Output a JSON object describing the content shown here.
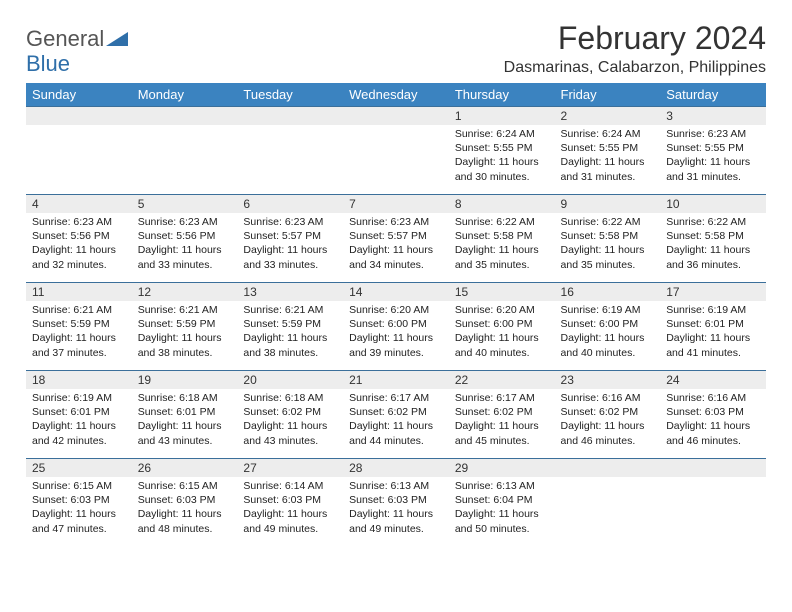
{
  "brand": {
    "part1": "General",
    "part2": "Blue"
  },
  "title": "February 2024",
  "subtitle": "Dasmarinas, Calabarzon, Philippines",
  "colors": {
    "header_bg": "#3b83c0",
    "header_text": "#ffffff",
    "daynum_bg": "#ededed",
    "cell_border": "#3b6f9a",
    "brand_gray": "#555555",
    "brand_blue": "#2f6fa9"
  },
  "day_headers": [
    "Sunday",
    "Monday",
    "Tuesday",
    "Wednesday",
    "Thursday",
    "Friday",
    "Saturday"
  ],
  "weeks": [
    [
      {
        "empty": true
      },
      {
        "empty": true
      },
      {
        "empty": true
      },
      {
        "empty": true
      },
      {
        "n": "1",
        "sr": "6:24 AM",
        "ss": "5:55 PM",
        "dh": "11",
        "dm": "30"
      },
      {
        "n": "2",
        "sr": "6:24 AM",
        "ss": "5:55 PM",
        "dh": "11",
        "dm": "31"
      },
      {
        "n": "3",
        "sr": "6:23 AM",
        "ss": "5:55 PM",
        "dh": "11",
        "dm": "31"
      }
    ],
    [
      {
        "n": "4",
        "sr": "6:23 AM",
        "ss": "5:56 PM",
        "dh": "11",
        "dm": "32"
      },
      {
        "n": "5",
        "sr": "6:23 AM",
        "ss": "5:56 PM",
        "dh": "11",
        "dm": "33"
      },
      {
        "n": "6",
        "sr": "6:23 AM",
        "ss": "5:57 PM",
        "dh": "11",
        "dm": "33"
      },
      {
        "n": "7",
        "sr": "6:23 AM",
        "ss": "5:57 PM",
        "dh": "11",
        "dm": "34"
      },
      {
        "n": "8",
        "sr": "6:22 AM",
        "ss": "5:58 PM",
        "dh": "11",
        "dm": "35"
      },
      {
        "n": "9",
        "sr": "6:22 AM",
        "ss": "5:58 PM",
        "dh": "11",
        "dm": "35"
      },
      {
        "n": "10",
        "sr": "6:22 AM",
        "ss": "5:58 PM",
        "dh": "11",
        "dm": "36"
      }
    ],
    [
      {
        "n": "11",
        "sr": "6:21 AM",
        "ss": "5:59 PM",
        "dh": "11",
        "dm": "37"
      },
      {
        "n": "12",
        "sr": "6:21 AM",
        "ss": "5:59 PM",
        "dh": "11",
        "dm": "38"
      },
      {
        "n": "13",
        "sr": "6:21 AM",
        "ss": "5:59 PM",
        "dh": "11",
        "dm": "38"
      },
      {
        "n": "14",
        "sr": "6:20 AM",
        "ss": "6:00 PM",
        "dh": "11",
        "dm": "39"
      },
      {
        "n": "15",
        "sr": "6:20 AM",
        "ss": "6:00 PM",
        "dh": "11",
        "dm": "40"
      },
      {
        "n": "16",
        "sr": "6:19 AM",
        "ss": "6:00 PM",
        "dh": "11",
        "dm": "40"
      },
      {
        "n": "17",
        "sr": "6:19 AM",
        "ss": "6:01 PM",
        "dh": "11",
        "dm": "41"
      }
    ],
    [
      {
        "n": "18",
        "sr": "6:19 AM",
        "ss": "6:01 PM",
        "dh": "11",
        "dm": "42"
      },
      {
        "n": "19",
        "sr": "6:18 AM",
        "ss": "6:01 PM",
        "dh": "11",
        "dm": "43"
      },
      {
        "n": "20",
        "sr": "6:18 AM",
        "ss": "6:02 PM",
        "dh": "11",
        "dm": "43"
      },
      {
        "n": "21",
        "sr": "6:17 AM",
        "ss": "6:02 PM",
        "dh": "11",
        "dm": "44"
      },
      {
        "n": "22",
        "sr": "6:17 AM",
        "ss": "6:02 PM",
        "dh": "11",
        "dm": "45"
      },
      {
        "n": "23",
        "sr": "6:16 AM",
        "ss": "6:02 PM",
        "dh": "11",
        "dm": "46"
      },
      {
        "n": "24",
        "sr": "6:16 AM",
        "ss": "6:03 PM",
        "dh": "11",
        "dm": "46"
      }
    ],
    [
      {
        "n": "25",
        "sr": "6:15 AM",
        "ss": "6:03 PM",
        "dh": "11",
        "dm": "47"
      },
      {
        "n": "26",
        "sr": "6:15 AM",
        "ss": "6:03 PM",
        "dh": "11",
        "dm": "48"
      },
      {
        "n": "27",
        "sr": "6:14 AM",
        "ss": "6:03 PM",
        "dh": "11",
        "dm": "49"
      },
      {
        "n": "28",
        "sr": "6:13 AM",
        "ss": "6:03 PM",
        "dh": "11",
        "dm": "49"
      },
      {
        "n": "29",
        "sr": "6:13 AM",
        "ss": "6:04 PM",
        "dh": "11",
        "dm": "50"
      },
      {
        "empty": true
      },
      {
        "empty": true
      }
    ]
  ],
  "labels": {
    "sunrise": "Sunrise: ",
    "sunset": "Sunset: ",
    "daylight_pre": "Daylight: ",
    "hours_and": " hours and ",
    "minutes": " minutes."
  }
}
